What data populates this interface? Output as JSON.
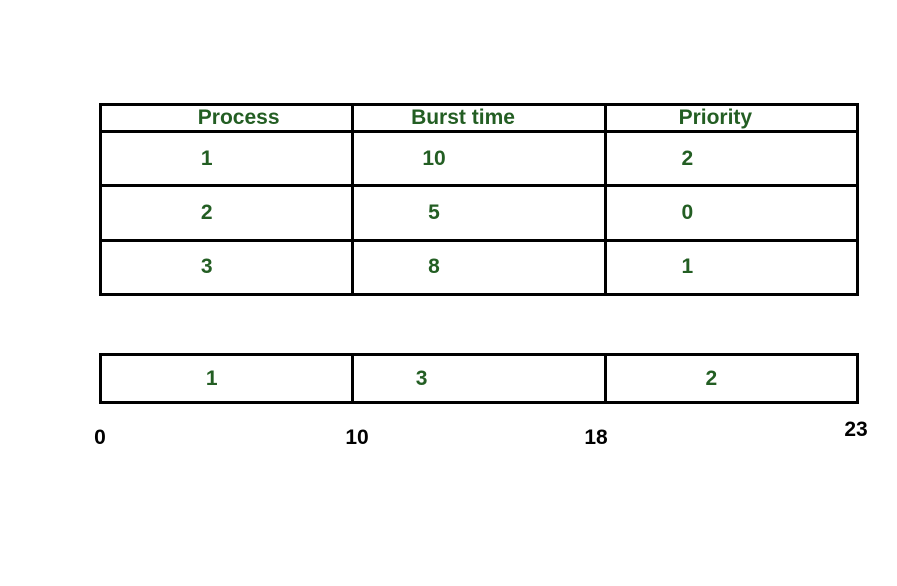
{
  "colors": {
    "text_green": "#235e23",
    "line_black": "#000000",
    "background": "#ffffff"
  },
  "process_table": {
    "headers": [
      "Process",
      "Burst time",
      "Priority"
    ],
    "rows": [
      {
        "process": "1",
        "burst_time": "10",
        "priority": "2"
      },
      {
        "process": "2",
        "burst_time": "5",
        "priority": "0"
      },
      {
        "process": "3",
        "burst_time": "8",
        "priority": "1"
      }
    ]
  },
  "gantt": {
    "segments": [
      {
        "process": "1",
        "start": "0",
        "end": "10"
      },
      {
        "process": "3",
        "start": "10",
        "end": "18"
      },
      {
        "process": "2",
        "start": "18",
        "end": "23"
      }
    ],
    "tick_labels": [
      "0",
      "10",
      "18",
      "23"
    ]
  }
}
